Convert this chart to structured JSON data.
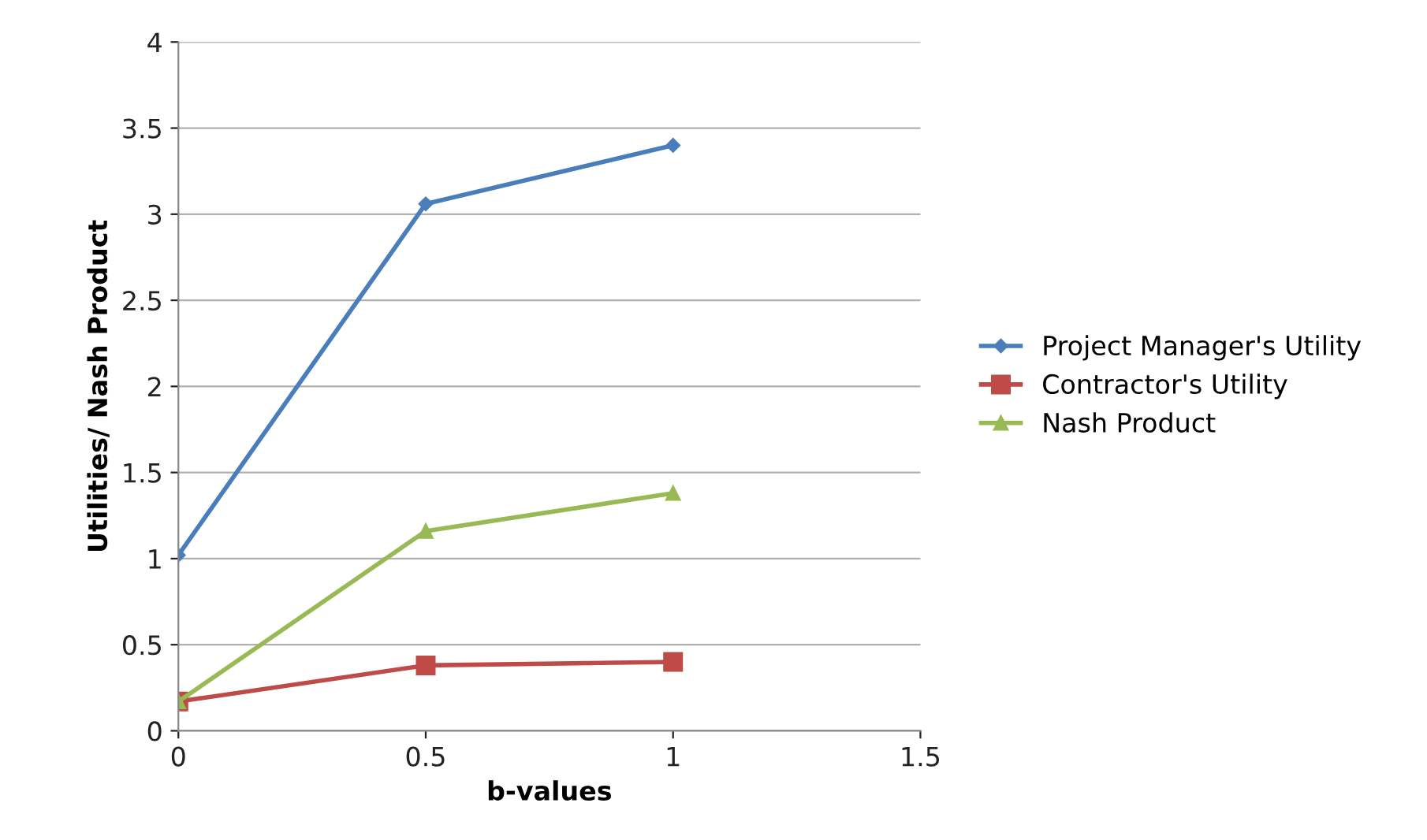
{
  "chart_data": {
    "type": "line",
    "xlabel": "b-values",
    "ylabel": "Utilities/ Nash Product",
    "x": [
      0,
      0.5,
      1
    ],
    "series": [
      {
        "name": "Project Manager's Utility",
        "color": "#4a7ebb",
        "marker": "diamond",
        "values": [
          1.02,
          3.06,
          3.4
        ]
      },
      {
        "name": "Contractor's Utility",
        "color": "#be4b48",
        "marker": "square",
        "values": [
          0.17,
          0.38,
          0.4
        ]
      },
      {
        "name": "Nash Product",
        "color": "#98b954",
        "marker": "triangle",
        "values": [
          0.17,
          1.16,
          1.38
        ]
      }
    ],
    "xlim": [
      0,
      1.5
    ],
    "xticks": [
      0,
      0.5,
      1,
      1.5
    ],
    "ylim": [
      0,
      4
    ],
    "yticks": [
      0,
      0.5,
      1,
      1.5,
      2,
      2.5,
      3,
      3.5,
      4
    ],
    "grid": "y",
    "legend": "right",
    "line_style": "solid"
  }
}
